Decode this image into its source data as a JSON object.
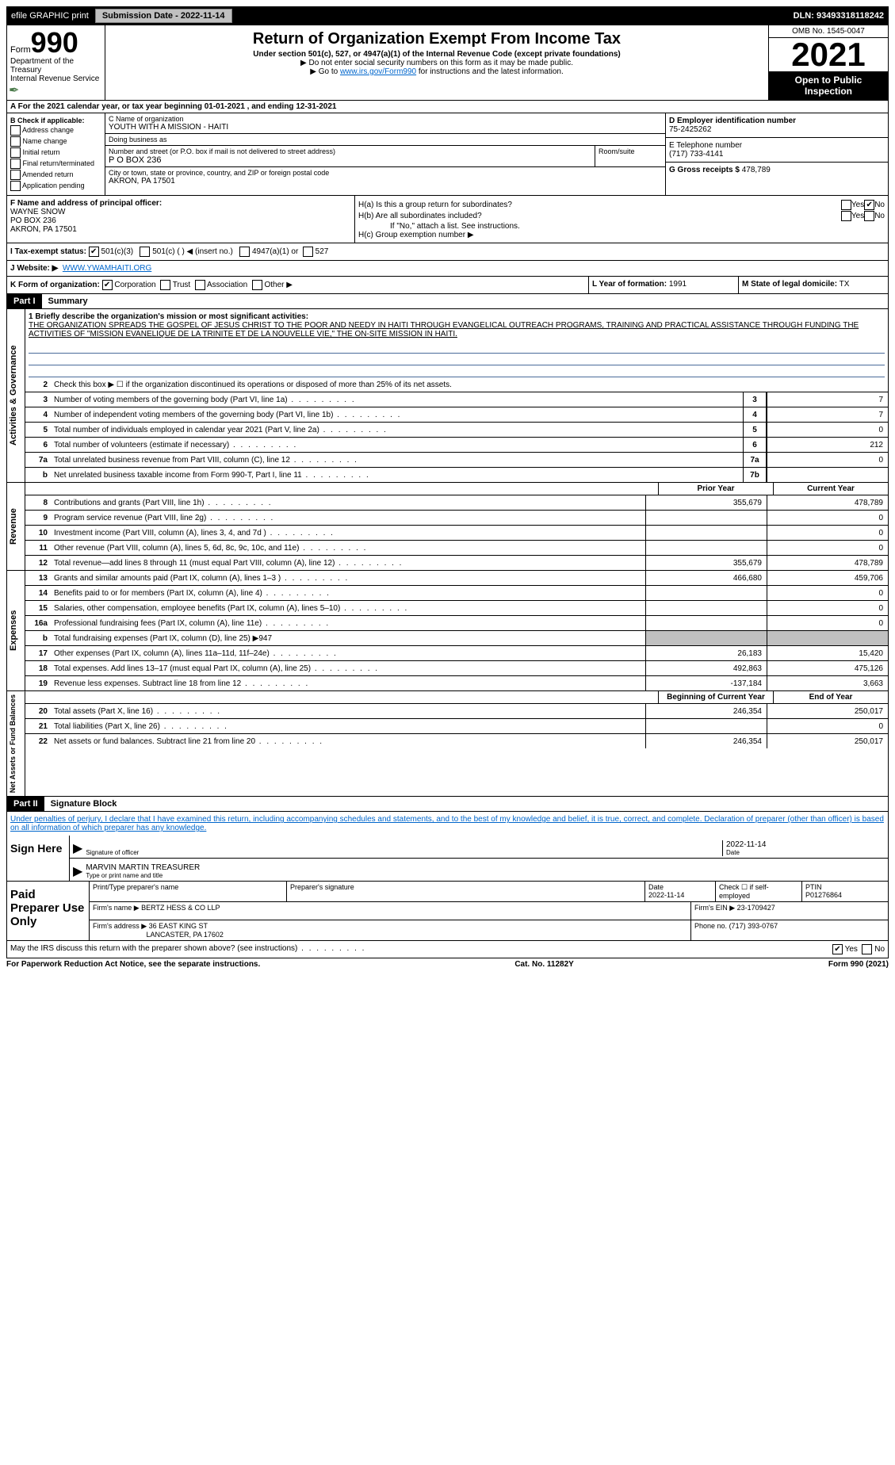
{
  "topbar": {
    "efile": "efile GRAPHIC print",
    "submission_label": "Submission Date - 2022-11-14",
    "dln": "DLN: 93493318118242"
  },
  "header": {
    "form_word": "Form",
    "form_num": "990",
    "dept": "Department of the Treasury",
    "irs": "Internal Revenue Service",
    "title": "Return of Organization Exempt From Income Tax",
    "sub": "Under section 501(c), 527, or 4947(a)(1) of the Internal Revenue Code (except private foundations)",
    "note1": "▶ Do not enter social security numbers on this form as it may be made public.",
    "note2_pre": "▶ Go to ",
    "note2_link": "www.irs.gov/Form990",
    "note2_post": " for instructions and the latest information.",
    "omb": "OMB No. 1545-0047",
    "year": "2021",
    "open": "Open to Public Inspection"
  },
  "row_a": "A For the 2021 calendar year, or tax year beginning 01-01-2021    , and ending 12-31-2021",
  "col_b": {
    "title": "B Check if applicable:",
    "opts": [
      "Address change",
      "Name change",
      "Initial return",
      "Final return/terminated",
      "Amended return",
      "Application pending"
    ]
  },
  "col_c": {
    "name_label": "C Name of organization",
    "name": "YOUTH WITH A MISSION - HAITI",
    "dba_label": "Doing business as",
    "dba": "",
    "addr_label": "Number and street (or P.O. box if mail is not delivered to street address)",
    "addr": "P O BOX 236",
    "room_label": "Room/suite",
    "city_label": "City or town, state or province, country, and ZIP or foreign postal code",
    "city": "AKRON, PA  17501"
  },
  "col_d": {
    "ein_label": "D Employer identification number",
    "ein": "75-2425262",
    "phone_label": "E Telephone number",
    "phone": "(717) 733-4141",
    "gross_label": "G Gross receipts $",
    "gross": "478,789"
  },
  "row_f": {
    "label": "F  Name and address of principal officer:",
    "name": "WAYNE SNOW",
    "addr1": "PO BOX 236",
    "addr2": "AKRON, PA  17501"
  },
  "row_h": {
    "ha": "H(a)  Is this a group return for subordinates?",
    "hb": "H(b)  Are all subordinates included?",
    "hb_note": "If \"No,\" attach a list. See instructions.",
    "hc": "H(c)  Group exemption number ▶"
  },
  "row_i": {
    "label": "I  Tax-exempt status:",
    "opt1": "501(c)(3)",
    "opt2": "501(c) (    ) ◀ (insert no.)",
    "opt3": "4947(a)(1) or",
    "opt4": "527"
  },
  "row_j": {
    "label": "J  Website: ▶",
    "val": "WWW.YWAMHAITI.ORG"
  },
  "row_k": "K Form of organization:",
  "row_k_opts": [
    "Corporation",
    "Trust",
    "Association",
    "Other ▶"
  ],
  "row_l": {
    "year_label": "L Year of formation:",
    "year": "1991",
    "state_label": "M State of legal domicile:",
    "state": "TX"
  },
  "parts": {
    "p1": "Part I",
    "p1_title": "Summary",
    "p2": "Part II",
    "p2_title": "Signature Block"
  },
  "mission": {
    "label": "1  Briefly describe the organization's mission or most significant activities:",
    "text": "THE ORGANIZATION SPREADS THE GOSPEL OF JESUS CHRIST TO THE POOR AND NEEDY IN HAITI THROUGH EVANGELICAL OUTREACH PROGRAMS, TRAINING AND PRACTICAL ASSISTANCE THROUGH FUNDING THE ACTIVITIES OF \"MISSION EVANELIQUE DE LA TRINITE ET DE LA NOUVELLE VIE,\" THE ON-SITE MISSION IN HAITI."
  },
  "gov_lines": [
    {
      "n": "2",
      "d": "Check this box ▶ ☐  if the organization discontinued its operations or disposed of more than 25% of its net assets."
    },
    {
      "n": "3",
      "d": "Number of voting members of the governing body (Part VI, line 1a)",
      "box": "3",
      "v": "7"
    },
    {
      "n": "4",
      "d": "Number of independent voting members of the governing body (Part VI, line 1b)",
      "box": "4",
      "v": "7"
    },
    {
      "n": "5",
      "d": "Total number of individuals employed in calendar year 2021 (Part V, line 2a)",
      "box": "5",
      "v": "0"
    },
    {
      "n": "6",
      "d": "Total number of volunteers (estimate if necessary)",
      "box": "6",
      "v": "212"
    },
    {
      "n": "7a",
      "d": "Total unrelated business revenue from Part VIII, column (C), line 12",
      "box": "7a",
      "v": "0"
    },
    {
      "n": "b",
      "d": "Net unrelated business taxable income from Form 990-T, Part I, line 11",
      "box": "7b",
      "v": ""
    }
  ],
  "col_headers": {
    "prior": "Prior Year",
    "current": "Current Year"
  },
  "rev_lines": [
    {
      "n": "8",
      "d": "Contributions and grants (Part VIII, line 1h)",
      "p": "355,679",
      "c": "478,789"
    },
    {
      "n": "9",
      "d": "Program service revenue (Part VIII, line 2g)",
      "p": "",
      "c": "0"
    },
    {
      "n": "10",
      "d": "Investment income (Part VIII, column (A), lines 3, 4, and 7d )",
      "p": "",
      "c": "0"
    },
    {
      "n": "11",
      "d": "Other revenue (Part VIII, column (A), lines 5, 6d, 8c, 9c, 10c, and 11e)",
      "p": "",
      "c": "0"
    },
    {
      "n": "12",
      "d": "Total revenue—add lines 8 through 11 (must equal Part VIII, column (A), line 12)",
      "p": "355,679",
      "c": "478,789"
    }
  ],
  "exp_lines": [
    {
      "n": "13",
      "d": "Grants and similar amounts paid (Part IX, column (A), lines 1–3 )",
      "p": "466,680",
      "c": "459,706"
    },
    {
      "n": "14",
      "d": "Benefits paid to or for members (Part IX, column (A), line 4)",
      "p": "",
      "c": "0"
    },
    {
      "n": "15",
      "d": "Salaries, other compensation, employee benefits (Part IX, column (A), lines 5–10)",
      "p": "",
      "c": "0"
    },
    {
      "n": "16a",
      "d": "Professional fundraising fees (Part IX, column (A), line 11e)",
      "p": "",
      "c": "0"
    },
    {
      "n": "b",
      "d": "Total fundraising expenses (Part IX, column (D), line 25) ▶947",
      "gray": true
    },
    {
      "n": "17",
      "d": "Other expenses (Part IX, column (A), lines 11a–11d, 11f–24e)",
      "p": "26,183",
      "c": "15,420"
    },
    {
      "n": "18",
      "d": "Total expenses. Add lines 13–17 (must equal Part IX, column (A), line 25)",
      "p": "492,863",
      "c": "475,126"
    },
    {
      "n": "19",
      "d": "Revenue less expenses. Subtract line 18 from line 12",
      "p": "-137,184",
      "c": "3,663"
    }
  ],
  "na_headers": {
    "begin": "Beginning of Current Year",
    "end": "End of Year"
  },
  "na_lines": [
    {
      "n": "20",
      "d": "Total assets (Part X, line 16)",
      "p": "246,354",
      "c": "250,017"
    },
    {
      "n": "21",
      "d": "Total liabilities (Part X, line 26)",
      "p": "",
      "c": "0"
    },
    {
      "n": "22",
      "d": "Net assets or fund balances. Subtract line 21 from line 20",
      "p": "246,354",
      "c": "250,017"
    }
  ],
  "sig": {
    "declare": "Under penalties of perjury, I declare that I have examined this return, including accompanying schedules and statements, and to the best of my knowledge and belief, it is true, correct, and complete. Declaration of preparer (other than officer) is based on all information of which preparer has any knowledge.",
    "sign_label": "Sign Here",
    "officer_sig": "Signature of officer",
    "date": "2022-11-14",
    "date_label": "Date",
    "name": "MARVIN MARTIN TREASURER",
    "name_label": "Type or print name and title"
  },
  "prep": {
    "label": "Paid Preparer Use Only",
    "h1": "Print/Type preparer's name",
    "h2": "Preparer's signature",
    "h3": "Date",
    "date": "2022-11-14",
    "h4": "Check ☐ if self-employed",
    "h5": "PTIN",
    "ptin": "P01276864",
    "firm_label": "Firm's name    ▶",
    "firm": "BERTZ HESS & CO LLP",
    "ein_label": "Firm's EIN ▶",
    "ein": "23-1709427",
    "addr_label": "Firm's address ▶",
    "addr": "36 EAST KING ST",
    "addr2": "LANCASTER, PA  17602",
    "phone_label": "Phone no.",
    "phone": "(717) 393-0767"
  },
  "discuss": "May the IRS discuss this return with the preparer shown above? (see instructions)",
  "footer": {
    "left": "For Paperwork Reduction Act Notice, see the separate instructions.",
    "mid": "Cat. No. 11282Y",
    "right": "Form 990 (2021)"
  },
  "vtabs": {
    "gov": "Activities & Governance",
    "rev": "Revenue",
    "exp": "Expenses",
    "na": "Net Assets or Fund Balances"
  }
}
